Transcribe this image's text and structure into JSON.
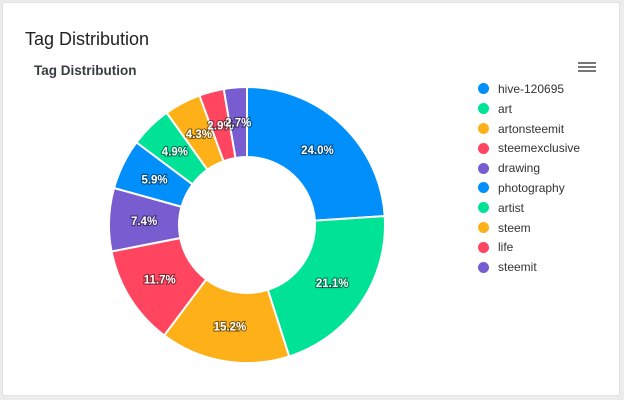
{
  "card": {
    "title": "Tag Distribution"
  },
  "menu": {
    "icon": "hamburger-menu-icon"
  },
  "chart_data": {
    "type": "donut",
    "title": "Tag Distribution",
    "legend_position": "right",
    "slices": [
      {
        "label": "hive-120695",
        "value": 24.0,
        "display": "24.0%",
        "color": "#008FFB"
      },
      {
        "label": "art",
        "value": 21.1,
        "display": "21.1%",
        "color": "#00E396"
      },
      {
        "label": "artonsteemit",
        "value": 15.2,
        "display": "15.2%",
        "color": "#FEB019"
      },
      {
        "label": "steemexclusive",
        "value": 11.7,
        "display": "11.7%",
        "color": "#FF4560"
      },
      {
        "label": "drawing",
        "value": 7.4,
        "display": "7.4%",
        "color": "#775DD0"
      },
      {
        "label": "photography",
        "value": 5.9,
        "display": "5.9%",
        "color": "#008FFB"
      },
      {
        "label": "artist",
        "value": 4.9,
        "display": "4.9%",
        "color": "#00E396"
      },
      {
        "label": "steem",
        "value": 4.3,
        "display": "4.3%",
        "color": "#FEB019"
      },
      {
        "label": "life",
        "value": 2.9,
        "display": "2.9%",
        "color": "#FF4560"
      },
      {
        "label": "steemit",
        "value": 2.7,
        "display": "2.7%",
        "color": "#775DD0"
      }
    ]
  }
}
